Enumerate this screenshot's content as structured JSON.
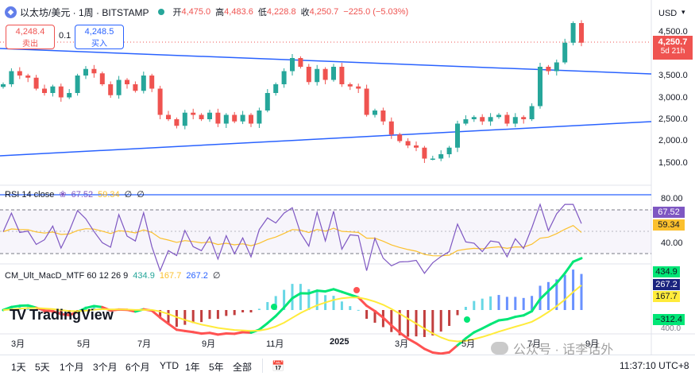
{
  "header": {
    "symbol_title": "以太坊/美元 · 1周 · BITSTAMP",
    "open_label": "开",
    "open_value": "4,475.0",
    "high_label": "高",
    "high_value": "4,483.6",
    "low_label": "低",
    "low_value": "4,228.8",
    "close_label": "收",
    "close_value": "4,250.7",
    "change_value": "−225.0 (−5.03%)",
    "sell_price": "4,248.4",
    "sell_label": "卖出",
    "spread": "0.1",
    "buy_price": "4,248.5",
    "buy_label": "买入",
    "currency": "USD"
  },
  "price_axis": {
    "ticks": [
      "4,500.0",
      "3,500.0",
      "3,000.0",
      "2,500.0",
      "2,000.0",
      "1,500.0"
    ],
    "current_price": "4,250.7",
    "countdown": "5d 21h"
  },
  "rsi": {
    "label": "RSI 14 close",
    "value1": "67.52",
    "value2": "59.34",
    "extra1": "∅",
    "extra2": "∅",
    "axis_ticks": [
      "80.00",
      "40.00"
    ],
    "badge_rsi": "67.52",
    "badge_ma": "59.34"
  },
  "macd": {
    "label": "CM_Ult_MacD_MTF 60 12 26 9",
    "v1": "434.9",
    "v2": "167.7",
    "v3": "267.2",
    "v4": "∅",
    "badge1": "434.9",
    "badge2": "267.2",
    "badge3": "167.7",
    "badge4": "−312.4",
    "axis_partial": "400.0"
  },
  "time_axis": {
    "labels": [
      "3月",
      "5月",
      "7月",
      "9月",
      "11月",
      "2025",
      "3月",
      "5月",
      "7月",
      "9月"
    ]
  },
  "watermark": {
    "brand": "TradingView",
    "wechat": "公众号 · 话李话外"
  },
  "bottom": {
    "timeframes": [
      "1天",
      "5天",
      "1个月",
      "3个月",
      "6个月",
      "YTD",
      "1年",
      "5年",
      "全部"
    ],
    "clock": "11:37:10 UTC+8"
  },
  "colors": {
    "up": "#26a69a",
    "down": "#ef5350",
    "trendline": "#2962ff",
    "rsi_line": "#7e57c2",
    "rsi_ma": "#fbc02d",
    "macd_green": "#00e676",
    "macd_red": "#ff5252"
  },
  "chart_data": {
    "type": "candlestick",
    "timeframe": "1W",
    "ohlc_last": {
      "open": 4475.0,
      "high": 4483.6,
      "low": 4228.8,
      "close": 4250.7
    },
    "closes_approx": [
      3300,
      3600,
      3500,
      3450,
      3200,
      3100,
      3250,
      3000,
      3100,
      3500,
      3650,
      3550,
      3300,
      3050,
      3400,
      3300,
      3150,
      3500,
      3200,
      2600,
      2500,
      2350,
      2650,
      2600,
      2500,
      2650,
      2400,
      2600,
      2450,
      2600,
      2400,
      2700,
      3100,
      3300,
      3600,
      3900,
      3700,
      3350,
      3650,
      3400,
      3700,
      3300,
      3250,
      3200,
      2600,
      2700,
      2450,
      2150,
      2000,
      1900,
      1850,
      1600,
      1600,
      1700,
      1850,
      2400,
      2500,
      2550,
      2450,
      2550,
      2600,
      2400,
      2550,
      2500,
      2800,
      3700,
      3600,
      3800,
      4250,
      4700,
      4250
    ],
    "rsi_last": 67.52,
    "rsi_ma_last": 59.34,
    "macd_last": 434.9,
    "signal_last": 167.7,
    "hist_last": 267.2
  }
}
